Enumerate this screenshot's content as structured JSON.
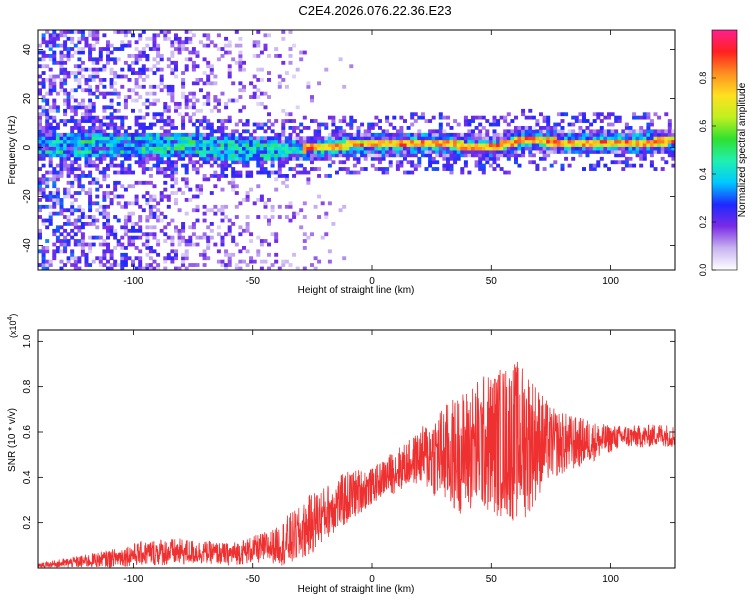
{
  "figure": {
    "title": "C2E4.2026.076.22.36.E23"
  },
  "chart_data": [
    {
      "type": "heatmap",
      "panel": "spectrogram",
      "xlabel": "Height of straight line (km)",
      "ylabel": "Frequency (Hz)",
      "xlim": [
        -140,
        127
      ],
      "ylim": [
        -50,
        48
      ],
      "xticks": [
        -100,
        -50,
        0,
        50,
        100
      ],
      "yticks": [
        -40,
        -20,
        0,
        20,
        40
      ],
      "colorbar": {
        "label": "Normalized spectral amplitude",
        "range": [
          0,
          1
        ],
        "ticks": [
          0.0,
          0.2,
          0.4,
          0.6,
          0.8
        ],
        "tick_labels": [
          "0.0",
          "0.2",
          "0.4",
          "0.6",
          "0.8"
        ],
        "colormap": [
          "#ffffff",
          "#c8b4f0",
          "#7a2ce6",
          "#1e28ff",
          "#00c8ff",
          "#20f0b0",
          "#30e030",
          "#c0f020",
          "#ffe020",
          "#ff9020",
          "#ff2020",
          "#ff2090"
        ]
      },
      "ridge": {
        "x": [
          -140,
          -120,
          -100,
          -80,
          -60,
          -40,
          -20,
          -10,
          0,
          10,
          20,
          30,
          40,
          50,
          60,
          65,
          70,
          80,
          90,
          100,
          110,
          127
        ],
        "y": [
          0,
          0,
          0.5,
          0.5,
          -1.5,
          -1.5,
          -0.5,
          0.5,
          0.5,
          0.5,
          1.5,
          1,
          0,
          -0.5,
          2,
          3,
          2,
          1.5,
          1.5,
          1.5,
          1.5,
          2
        ],
        "peak_x_range": [
          -30,
          127
        ]
      }
    },
    {
      "type": "line",
      "panel": "snr",
      "xlabel": "Height of straight line (km)",
      "ylabel": "SNR (10 * v/v)",
      "y_multiplier": "(x10",
      "y_multiplier_exp": "4",
      "y_multiplier_close": ")",
      "xlim": [
        -140,
        127
      ],
      "ylim": [
        0,
        1.05
      ],
      "xticks": [
        -100,
        -50,
        0,
        50,
        100
      ],
      "yticks": [
        0.2,
        0.4,
        0.6,
        0.8,
        1.0
      ],
      "ytick_labels": [
        "0.2",
        "0.4",
        "0.6",
        "0.8",
        "1.0"
      ],
      "color": "#ee3030",
      "series": [
        {
          "x": [
            -140,
            -130,
            -120,
            -110,
            -100,
            -90,
            -80,
            -70,
            -60,
            -50,
            -40,
            -35,
            -30,
            -25,
            -20,
            -15,
            -10,
            -5,
            0,
            5,
            10,
            15,
            20,
            25,
            30,
            35,
            40,
            45,
            50,
            55,
            60,
            65,
            70,
            75,
            80,
            85,
            90,
            95,
            100,
            105,
            110,
            115,
            120,
            127
          ],
          "y": [
            0.01,
            0.02,
            0.03,
            0.04,
            0.06,
            0.07,
            0.07,
            0.07,
            0.06,
            0.08,
            0.1,
            0.12,
            0.15,
            0.2,
            0.24,
            0.28,
            0.31,
            0.34,
            0.36,
            0.4,
            0.43,
            0.46,
            0.49,
            0.5,
            0.5,
            0.5,
            0.52,
            0.55,
            0.55,
            0.56,
            0.56,
            0.56,
            0.56,
            0.55,
            0.55,
            0.55,
            0.56,
            0.56,
            0.57,
            0.58,
            0.58,
            0.58,
            0.59,
            0.58
          ],
          "noise": [
            0.01,
            0.02,
            0.03,
            0.04,
            0.05,
            0.06,
            0.06,
            0.05,
            0.05,
            0.06,
            0.08,
            0.12,
            0.12,
            0.14,
            0.12,
            0.12,
            0.12,
            0.1,
            0.08,
            0.08,
            0.1,
            0.1,
            0.12,
            0.18,
            0.22,
            0.26,
            0.28,
            0.3,
            0.32,
            0.34,
            0.36,
            0.34,
            0.24,
            0.16,
            0.14,
            0.12,
            0.1,
            0.08,
            0.06,
            0.05,
            0.05,
            0.05,
            0.05,
            0.05
          ]
        }
      ]
    }
  ]
}
